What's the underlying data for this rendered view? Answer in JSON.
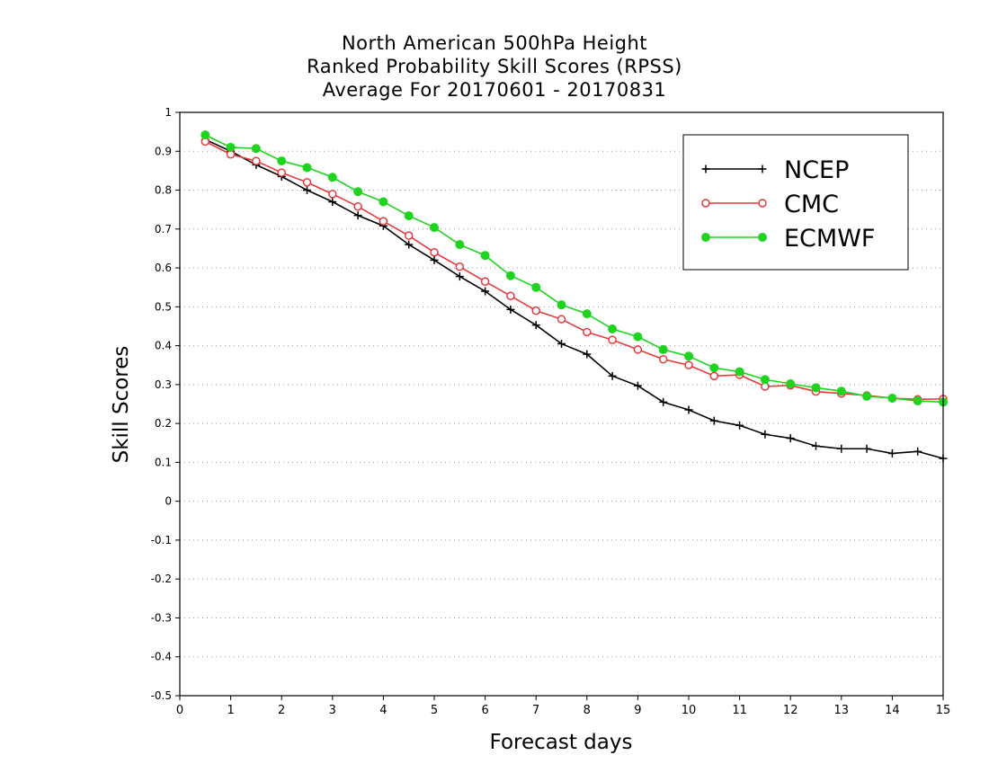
{
  "chart_data": {
    "type": "line",
    "title_lines": [
      "North American 500hPa Height",
      "Ranked Probability Skill Scores (RPSS)",
      "Average For 20170601 - 20170831"
    ],
    "xlabel": "Forecast days",
    "ylabel": "Skill Scores",
    "xlim": [
      0,
      15
    ],
    "ylim": [
      -0.5,
      1
    ],
    "xticks": [
      "0",
      "1",
      "2",
      "3",
      "4",
      "5",
      "6",
      "7",
      "8",
      "9",
      "10",
      "11",
      "12",
      "13",
      "14",
      "15"
    ],
    "yticks": [
      "-0.5",
      "-0.4",
      "-0.3",
      "-0.2",
      "-0.1",
      "0",
      "0.1",
      "0.2",
      "0.3",
      "0.4",
      "0.5",
      "0.6",
      "0.7",
      "0.8",
      "0.9",
      "1"
    ],
    "grid": "horizontal dotted",
    "legend_position": "top-right",
    "x": [
      0.5,
      1,
      1.5,
      2,
      2.5,
      3,
      3.5,
      4,
      4.5,
      5,
      5.5,
      6,
      6.5,
      7,
      7.5,
      8,
      8.5,
      9,
      9.5,
      10,
      10.5,
      11,
      11.5,
      12,
      12.5,
      13,
      13.5,
      14,
      14.5,
      15
    ],
    "series": [
      {
        "name": "NCEP",
        "color": "#000000",
        "marker": "plus",
        "values": [
          0.93,
          0.9,
          0.865,
          0.835,
          0.8,
          0.77,
          0.735,
          0.708,
          0.66,
          0.62,
          0.578,
          0.54,
          0.493,
          0.453,
          0.405,
          0.378,
          0.322,
          0.297,
          0.255,
          0.235,
          0.207,
          0.195,
          0.172,
          0.162,
          0.142,
          0.135,
          0.135,
          0.123,
          0.128,
          0.11
        ]
      },
      {
        "name": "CMC",
        "color": "#e8393b",
        "marker": "open-circle",
        "values": [
          0.925,
          0.892,
          0.875,
          0.845,
          0.82,
          0.79,
          0.758,
          0.72,
          0.683,
          0.64,
          0.603,
          0.565,
          0.528,
          0.49,
          0.468,
          0.435,
          0.415,
          0.39,
          0.365,
          0.35,
          0.322,
          0.325,
          0.295,
          0.298,
          0.282,
          0.277,
          0.272,
          0.265,
          0.262,
          0.263
        ]
      },
      {
        "name": "ECMWF",
        "color": "#1ed41e",
        "marker": "filled-circle",
        "values": [
          0.942,
          0.91,
          0.907,
          0.875,
          0.858,
          0.833,
          0.796,
          0.77,
          0.734,
          0.704,
          0.66,
          0.632,
          0.58,
          0.55,
          0.505,
          0.482,
          0.443,
          0.423,
          0.39,
          0.373,
          0.343,
          0.333,
          0.313,
          0.302,
          0.292,
          0.283,
          0.27,
          0.265,
          0.258,
          0.255
        ]
      }
    ]
  }
}
